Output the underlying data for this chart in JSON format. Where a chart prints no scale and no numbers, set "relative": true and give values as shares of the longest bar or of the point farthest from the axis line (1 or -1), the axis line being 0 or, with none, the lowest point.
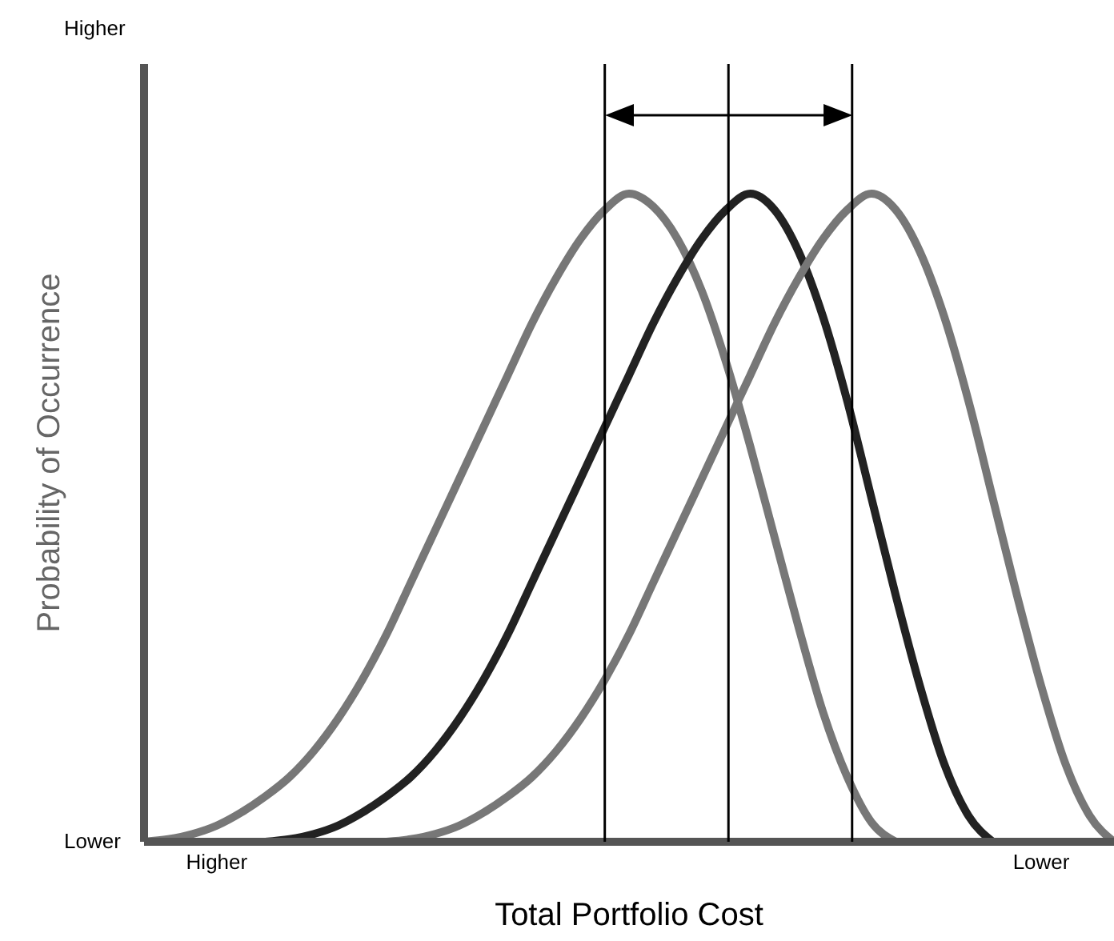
{
  "chart_data": {
    "type": "line",
    "relative": true,
    "xlabel": "Total Portfolio Cost",
    "ylabel": "Probability of Occurrence",
    "categories": [
      null,
      null,
      null,
      "Higher",
      null,
      null,
      null,
      null,
      null,
      null,
      null,
      null,
      null,
      null,
      null,
      null,
      null,
      null,
      null,
      null,
      null,
      null,
      null,
      null,
      null,
      null,
      null,
      null,
      null,
      null,
      null,
      null,
      null,
      null,
      null,
      null,
      null,
      "Lower",
      null,
      null,
      null
    ],
    "annotations": [
      "Higher",
      "Lower"
    ],
    "series": [
      {
        "color": "#777777",
        "values": [
          0,
          0.004,
          0.012,
          0.025,
          0.045,
          0.07,
          0.1,
          0.14,
          0.19,
          0.25,
          0.32,
          0.4,
          0.48,
          0.56,
          0.64,
          0.72,
          0.8,
          0.87,
          0.93,
          0.975,
          1,
          0.98,
          0.93,
          0.85,
          0.74,
          0.61,
          0.47,
          0.33,
          0.2,
          0.1,
          0.03,
          0,
          null,
          null,
          null,
          null,
          null,
          null,
          null,
          null,
          null
        ]
      },
      {
        "color": "#222222",
        "values": [
          null,
          null,
          null,
          null,
          null,
          0,
          0.004,
          0.012,
          0.025,
          0.045,
          0.07,
          0.1,
          0.14,
          0.19,
          0.25,
          0.32,
          0.4,
          0.48,
          0.56,
          0.64,
          0.72,
          0.8,
          0.87,
          0.93,
          0.975,
          1,
          0.975,
          0.91,
          0.81,
          0.68,
          0.53,
          0.38,
          0.24,
          0.12,
          0.04,
          0,
          null,
          null,
          null,
          null,
          null
        ]
      },
      {
        "color": "#777777",
        "values": [
          null,
          null,
          null,
          null,
          null,
          null,
          null,
          null,
          null,
          null,
          0,
          0.004,
          0.012,
          0.025,
          0.045,
          0.07,
          0.1,
          0.14,
          0.19,
          0.25,
          0.32,
          0.4,
          0.48,
          0.56,
          0.64,
          0.72,
          0.8,
          0.87,
          0.93,
          0.975,
          1,
          0.975,
          0.91,
          0.81,
          0.68,
          0.53,
          0.38,
          0.24,
          0.12,
          0.04,
          0
        ]
      }
    ]
  }
}
